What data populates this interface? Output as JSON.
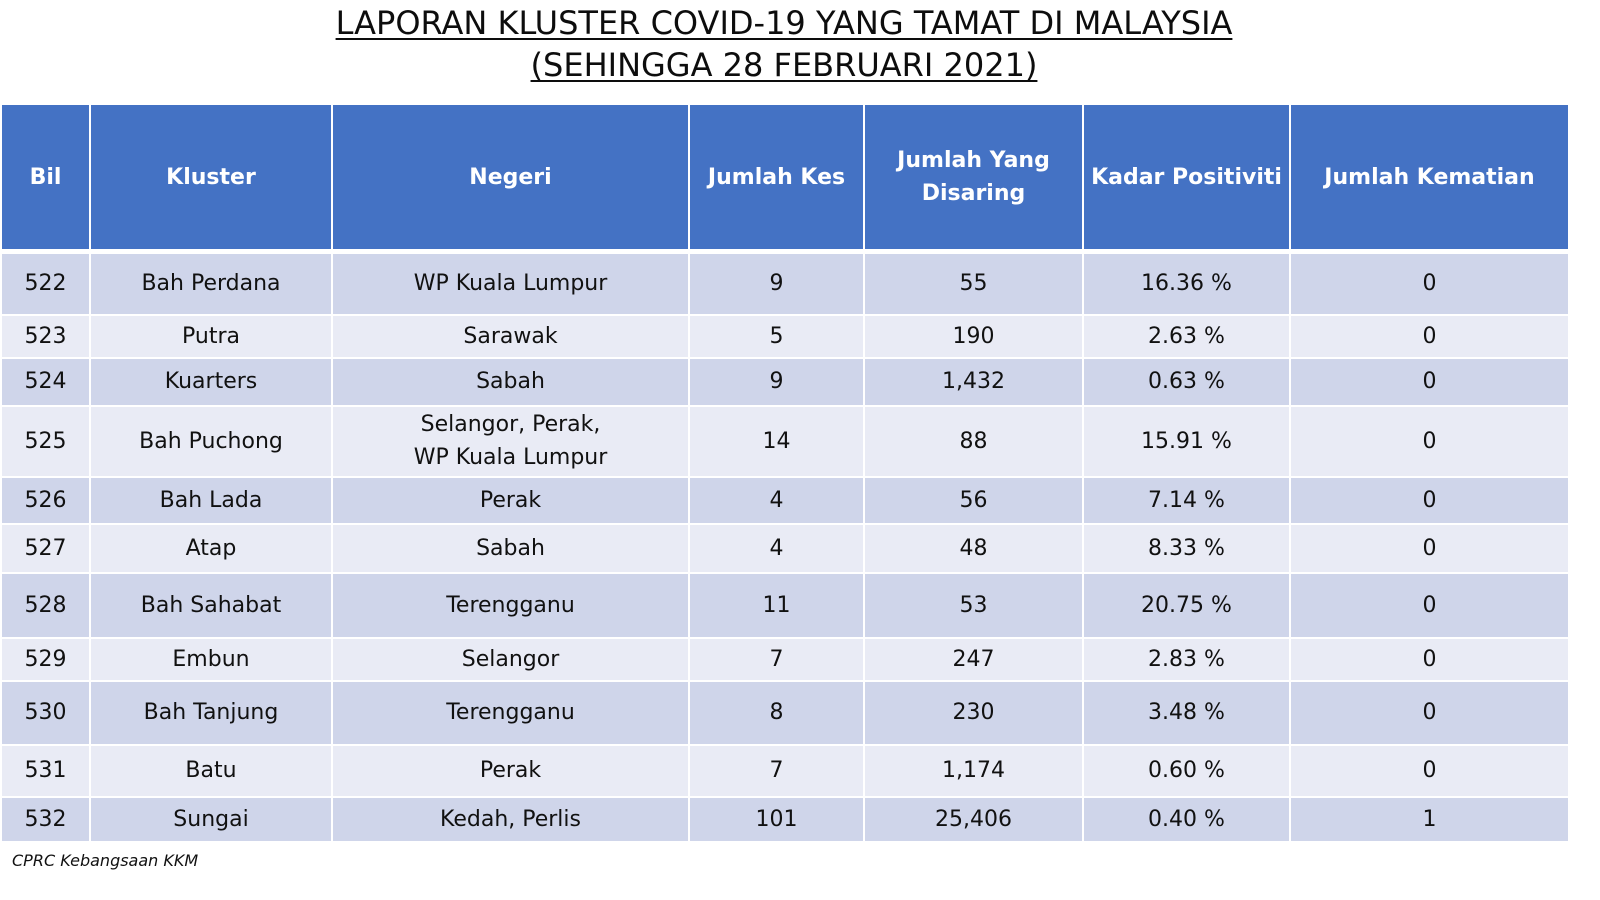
{
  "title": {
    "line1": "LAPORAN KLUSTER COVID-19 YANG TAMAT DI MALAYSIA",
    "line2": "(SEHINGGA 28 FEBRUARI 2021)"
  },
  "table": {
    "headers": {
      "bil": "Bil",
      "kluster": "Kluster",
      "negeri": "Negeri",
      "jumlah_kes": "Jumlah Kes",
      "jumlah_disaring_1": "Jumlah Yang",
      "jumlah_disaring_2": "Disaring",
      "kadar_positiviti": "Kadar Positiviti",
      "jumlah_kematian": "Jumlah Kematian"
    },
    "rows": [
      {
        "bil": "522",
        "kluster": "Bah Perdana",
        "negeri": "WP Kuala Lumpur",
        "negeri2": "",
        "kes": "9",
        "disaring": "55",
        "positiviti": "16.36 %",
        "kematian": "0"
      },
      {
        "bil": "523",
        "kluster": "Putra",
        "negeri": "Sarawak",
        "negeri2": "",
        "kes": "5",
        "disaring": "190",
        "positiviti": "2.63 %",
        "kematian": "0"
      },
      {
        "bil": "524",
        "kluster": "Kuarters",
        "negeri": "Sabah",
        "negeri2": "",
        "kes": "9",
        "disaring": "1,432",
        "positiviti": "0.63 %",
        "kematian": "0"
      },
      {
        "bil": "525",
        "kluster": "Bah Puchong",
        "negeri": "Selangor, Perak,",
        "negeri2": "WP Kuala Lumpur",
        "kes": "14",
        "disaring": "88",
        "positiviti": "15.91 %",
        "kematian": "0"
      },
      {
        "bil": "526",
        "kluster": "Bah Lada",
        "negeri": "Perak",
        "negeri2": "",
        "kes": "4",
        "disaring": "56",
        "positiviti": "7.14 %",
        "kematian": "0"
      },
      {
        "bil": "527",
        "kluster": "Atap",
        "negeri": "Sabah",
        "negeri2": "",
        "kes": "4",
        "disaring": "48",
        "positiviti": "8.33 %",
        "kematian": "0"
      },
      {
        "bil": "528",
        "kluster": "Bah Sahabat",
        "negeri": "Terengganu",
        "negeri2": "",
        "kes": "11",
        "disaring": "53",
        "positiviti": "20.75 %",
        "kematian": "0"
      },
      {
        "bil": "529",
        "kluster": "Embun",
        "negeri": "Selangor",
        "negeri2": "",
        "kes": "7",
        "disaring": "247",
        "positiviti": "2.83 %",
        "kematian": "0"
      },
      {
        "bil": "530",
        "kluster": "Bah Tanjung",
        "negeri": "Terengganu",
        "negeri2": "",
        "kes": "8",
        "disaring": "230",
        "positiviti": "3.48 %",
        "kematian": "0"
      },
      {
        "bil": "531",
        "kluster": "Batu",
        "negeri": "Perak",
        "negeri2": "",
        "kes": "7",
        "disaring": "1,174",
        "positiviti": "0.60 %",
        "kematian": "0"
      },
      {
        "bil": "532",
        "kluster": "Sungai",
        "negeri": "Kedah, Perlis",
        "negeri2": "",
        "kes": "101",
        "disaring": "25,406",
        "positiviti": "0.40 %",
        "kematian": "1"
      }
    ]
  },
  "footer": {
    "source": "CPRC Kebangsaan KKM"
  },
  "colors": {
    "header_bg": "#4472c4",
    "row_dark": "#cfd5ea",
    "row_light": "#e9ebf5"
  }
}
